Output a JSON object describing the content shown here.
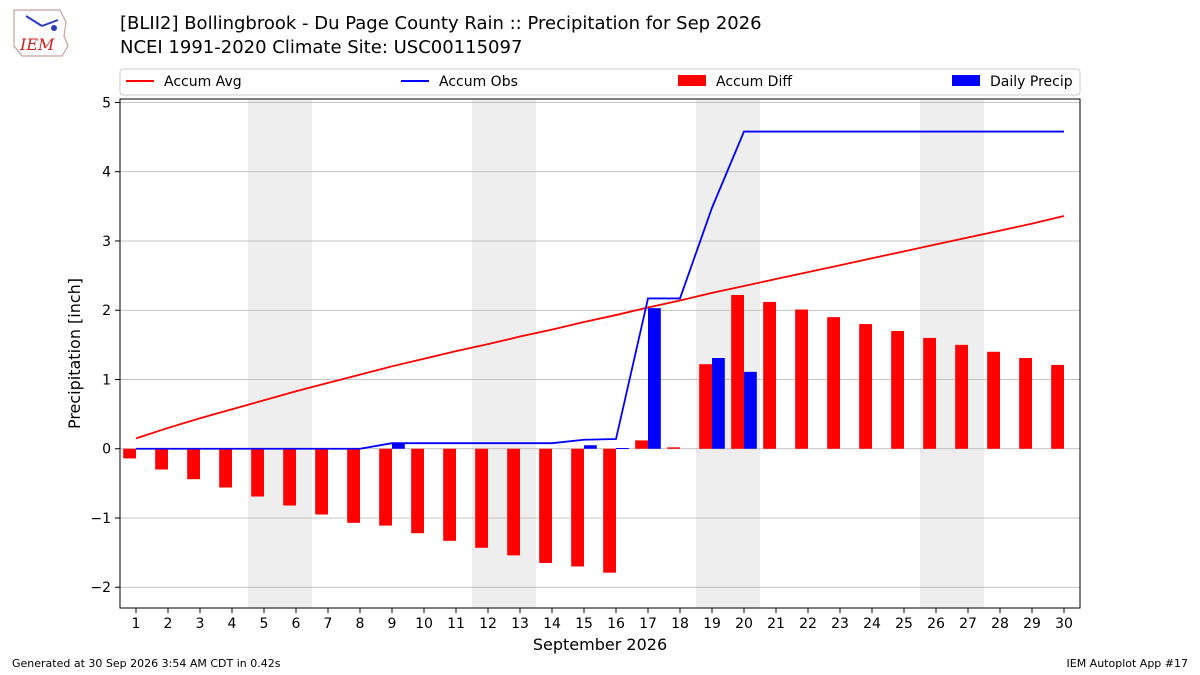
{
  "header": {
    "title_line1": "[BLII2] Bollingbrook - Du Page County Rain :: Precipitation for Sep 2026",
    "title_line2": "NCEI 1991-2020 Climate Site: USC00115097",
    "logo_text": "IEM"
  },
  "footer": {
    "left": "Generated at 30 Sep 2026 3:54 AM CDT in 0.42s",
    "right": "IEM Autoplot App #17"
  },
  "colors": {
    "accum_avg": "#ff0000",
    "accum_obs": "#0000ff",
    "accum_diff": "#ff0000",
    "daily_precip": "#0000ff",
    "weekend_shade": "#eeeeee",
    "grid": "#b0b0b0"
  },
  "chart_data": {
    "type": "bar",
    "xlabel": "September 2026",
    "ylabel": "Precipitation [inch]",
    "xlim": [
      0.5,
      30.5
    ],
    "ylim": [
      -2.3,
      5.05
    ],
    "yticks": [
      -2,
      -1,
      0,
      1,
      2,
      3,
      4,
      5
    ],
    "ytick_labels": [
      "−2",
      "−1",
      "0",
      "1",
      "2",
      "3",
      "4",
      "5"
    ],
    "grid": "horizontal",
    "legend_position": "top",
    "weekend_ranges": [
      [
        5,
        6
      ],
      [
        12,
        13
      ],
      [
        19,
        20
      ],
      [
        26,
        27
      ]
    ],
    "days": [
      1,
      2,
      3,
      4,
      5,
      6,
      7,
      8,
      9,
      10,
      11,
      12,
      13,
      14,
      15,
      16,
      17,
      18,
      19,
      20,
      21,
      22,
      23,
      24,
      25,
      26,
      27,
      28,
      29,
      30
    ],
    "series": [
      {
        "name": "Accum Avg",
        "kind": "line",
        "values": [
          0.15,
          0.3,
          0.44,
          0.57,
          0.7,
          0.83,
          0.95,
          1.07,
          1.19,
          1.3,
          1.41,
          1.51,
          1.62,
          1.72,
          1.83,
          1.93,
          2.04,
          2.14,
          2.25,
          2.35,
          2.45,
          2.55,
          2.65,
          2.75,
          2.85,
          2.95,
          3.05,
          3.15,
          3.25,
          3.36
        ]
      },
      {
        "name": "Accum Obs",
        "kind": "line",
        "values": [
          0.0,
          0.0,
          0.0,
          0.0,
          0.0,
          0.0,
          0.0,
          0.0,
          0.08,
          0.08,
          0.08,
          0.08,
          0.08,
          0.08,
          0.13,
          0.14,
          2.17,
          2.17,
          3.48,
          4.58,
          4.58,
          4.58,
          4.58,
          4.58,
          4.58,
          4.58,
          4.58,
          4.58,
          4.58,
          4.58
        ]
      },
      {
        "name": "Accum Diff",
        "kind": "bar",
        "values": [
          -0.14,
          -0.3,
          -0.44,
          -0.56,
          -0.69,
          -0.82,
          -0.95,
          -1.07,
          -1.11,
          -1.22,
          -1.33,
          -1.43,
          -1.54,
          -1.65,
          -1.7,
          -1.79,
          0.12,
          0.02,
          1.22,
          2.22,
          2.12,
          2.01,
          1.9,
          1.8,
          1.7,
          1.6,
          1.5,
          1.4,
          1.31,
          1.21
        ]
      },
      {
        "name": "Daily Precip",
        "kind": "bar",
        "values": [
          0,
          0,
          0,
          0,
          0,
          0,
          0,
          0,
          0.08,
          0,
          0,
          0,
          0,
          0,
          0.05,
          0.01,
          2.03,
          0,
          1.31,
          1.11,
          0,
          0,
          0,
          0,
          0,
          0,
          0,
          0,
          0,
          0
        ]
      }
    ]
  }
}
